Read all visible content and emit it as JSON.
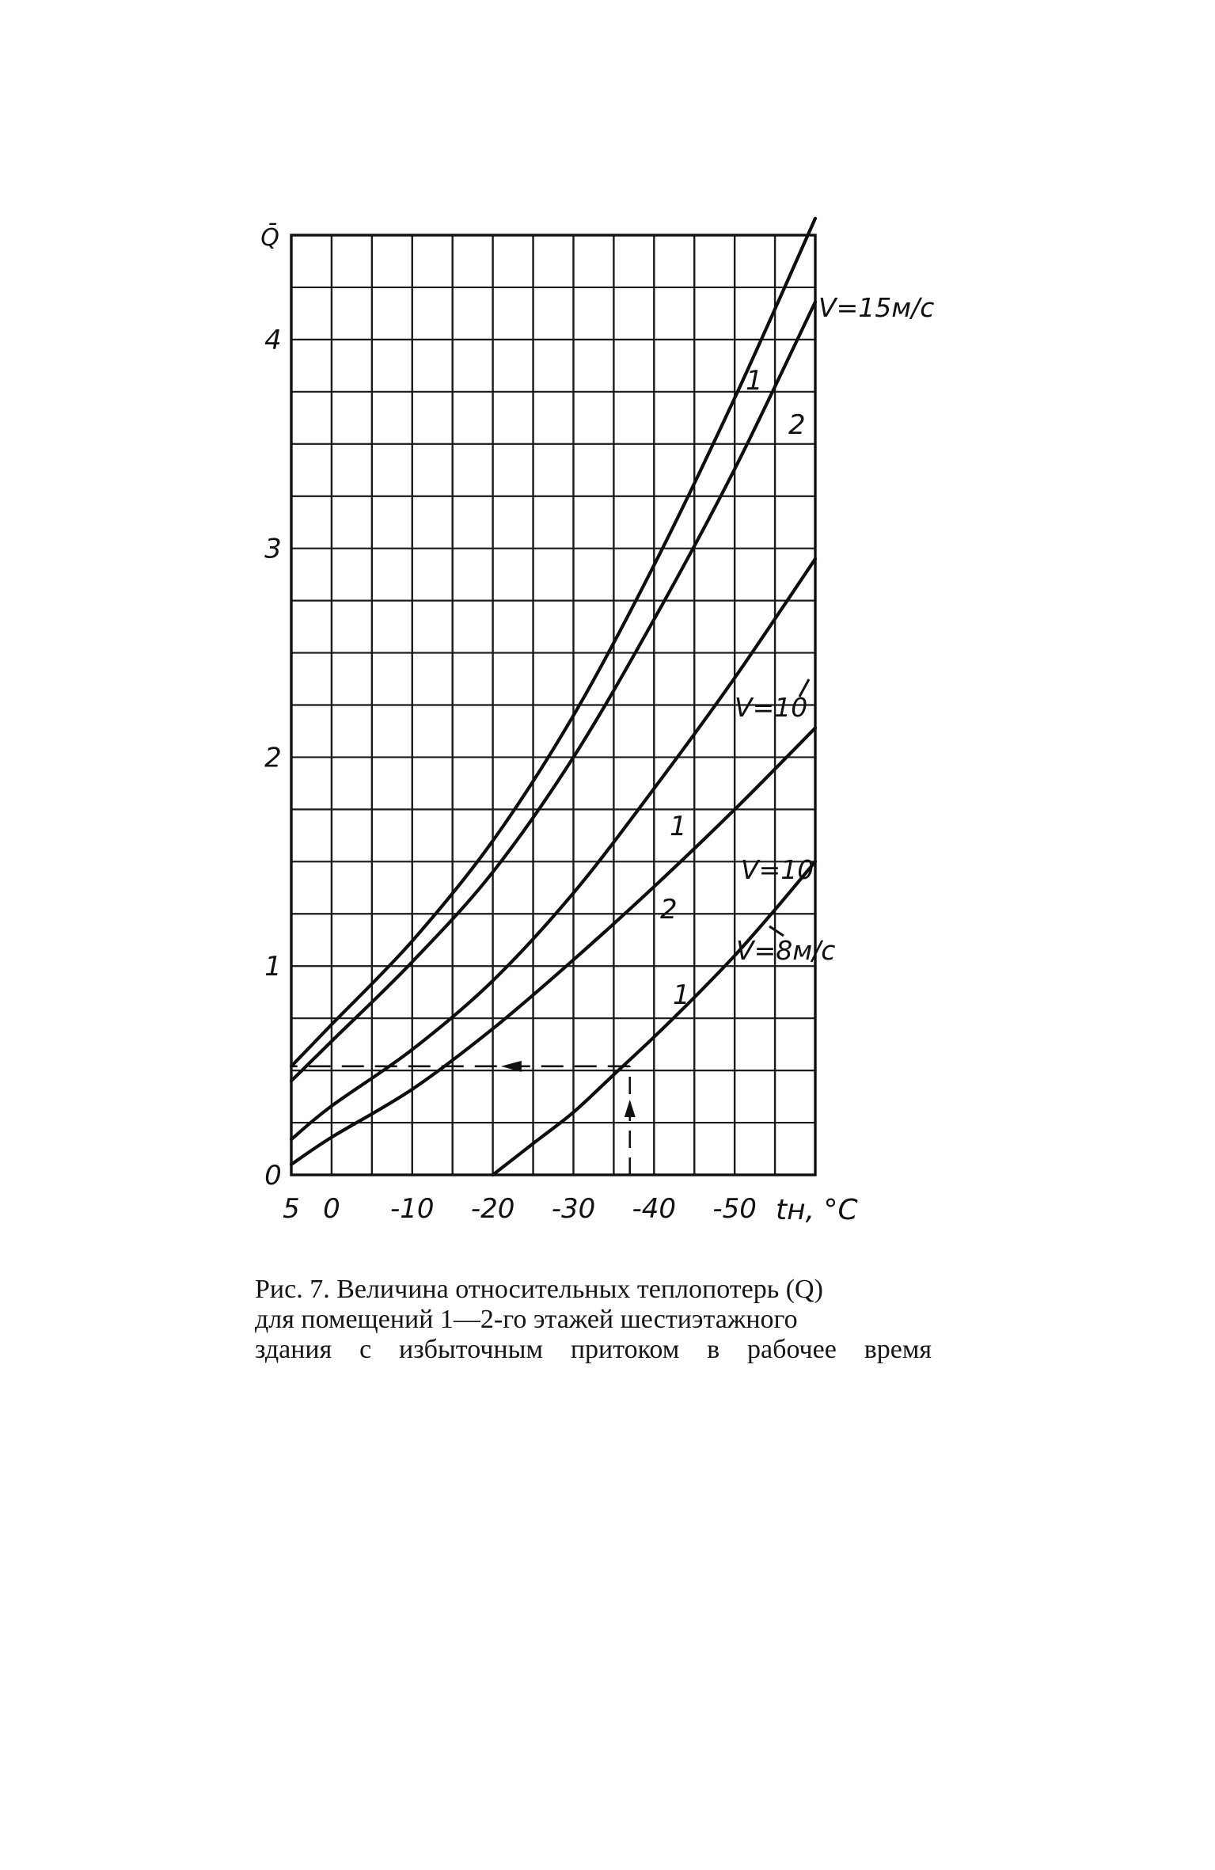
{
  "caption": {
    "lines": [
      "Рис. 7. Величина относительных теплопотерь (Q)",
      "для помещений 1—2-го этажей шестиэтажного",
      "здания с избыточным притоком в рабочее время"
    ]
  },
  "chart_data": {
    "type": "line",
    "title": "",
    "xlabel": "tн, °C",
    "ylabel": "Q̄",
    "xlim": [
      5,
      -60
    ],
    "ylim": [
      0,
      4.5
    ],
    "x_tick_labels": [
      {
        "value": 5,
        "label": "5"
      },
      {
        "value": 0,
        "label": "0"
      },
      {
        "value": -10,
        "label": "-10"
      },
      {
        "value": -20,
        "label": "-20"
      },
      {
        "value": -30,
        "label": "-30"
      },
      {
        "value": -40,
        "label": "-40"
      },
      {
        "value": -50,
        "label": "-50"
      }
    ],
    "y_tick_labels": [
      {
        "value": 0,
        "label": "0"
      },
      {
        "value": 1,
        "label": "1"
      },
      {
        "value": 2,
        "label": "2"
      },
      {
        "value": 3,
        "label": "3"
      },
      {
        "value": 4,
        "label": "4"
      }
    ],
    "grid": {
      "x_step": 5,
      "y_step": 0.25
    },
    "series": [
      {
        "curve": "1",
        "velocity_label": "V=15м/с",
        "x": [
          5,
          0,
          -10,
          -20,
          -30,
          -40,
          -50,
          -60
        ],
        "y": [
          0.52,
          0.72,
          1.12,
          1.6,
          2.2,
          2.92,
          3.72,
          4.58
        ]
      },
      {
        "curve": "2",
        "velocity_label": "V=15м/с",
        "x": [
          5,
          0,
          -10,
          -20,
          -30,
          -40,
          -50,
          -60
        ],
        "y": [
          0.45,
          0.64,
          1.02,
          1.45,
          2.0,
          2.66,
          3.38,
          4.18
        ]
      },
      {
        "curve": "1",
        "velocity_label": "V=10",
        "x": [
          5,
          0,
          -10,
          -20,
          -30,
          -40,
          -50,
          -60
        ],
        "y": [
          0.17,
          0.33,
          0.6,
          0.93,
          1.35,
          1.85,
          2.38,
          2.95
        ]
      },
      {
        "curve": "2",
        "velocity_label": "V=10",
        "x": [
          5,
          0,
          -10,
          -20,
          -30,
          -40,
          -50,
          -60
        ],
        "y": [
          0.05,
          0.18,
          0.41,
          0.7,
          1.03,
          1.38,
          1.75,
          2.14
        ]
      },
      {
        "curve": "1",
        "velocity_label": "V=8м/с",
        "x": [
          -20,
          -25,
          -30,
          -35,
          -40,
          -45,
          -50,
          -55,
          -60
        ],
        "y": [
          0.0,
          0.15,
          0.3,
          0.48,
          0.66,
          0.85,
          1.05,
          1.27,
          1.5
        ]
      }
    ],
    "annotations": [
      {
        "text": "V=15м/с"
      },
      {
        "text": "V=10"
      },
      {
        "text": "V=10"
      },
      {
        "text": "V=8м/с"
      },
      {
        "text": "1"
      },
      {
        "text": "2"
      },
      {
        "text": "1"
      },
      {
        "text": "2"
      },
      {
        "text": "1"
      }
    ],
    "guide_lines": {
      "x": -37,
      "y": 0.52
    }
  }
}
